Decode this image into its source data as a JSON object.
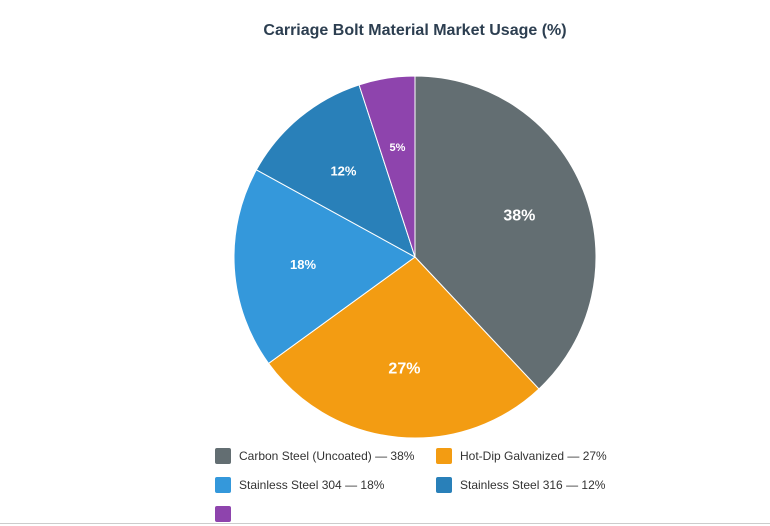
{
  "chart_data": {
    "type": "pie",
    "title": "Carriage Bolt Material Market Usage (%)",
    "categories": [
      "Carbon Steel (Uncoated)",
      "Hot-Dip Galvanized",
      "Stainless Steel 304",
      "Stainless Steel 316",
      ""
    ],
    "values": [
      38,
      27,
      18,
      12,
      5
    ],
    "data_labels": [
      "38%",
      "27%",
      "18%",
      "12%",
      "5%"
    ],
    "legend_labels": [
      "Carbon Steel (Uncoated) — 38%",
      "Hot-Dip Galvanized — 27%",
      "Stainless Steel 304 — 18%",
      "Stainless Steel 316 — 12%",
      ""
    ],
    "colors": [
      "#636e72",
      "#f39c12",
      "#3498db",
      "#2980b9",
      "#8e44ad"
    ],
    "legend_placement": "bottom"
  }
}
